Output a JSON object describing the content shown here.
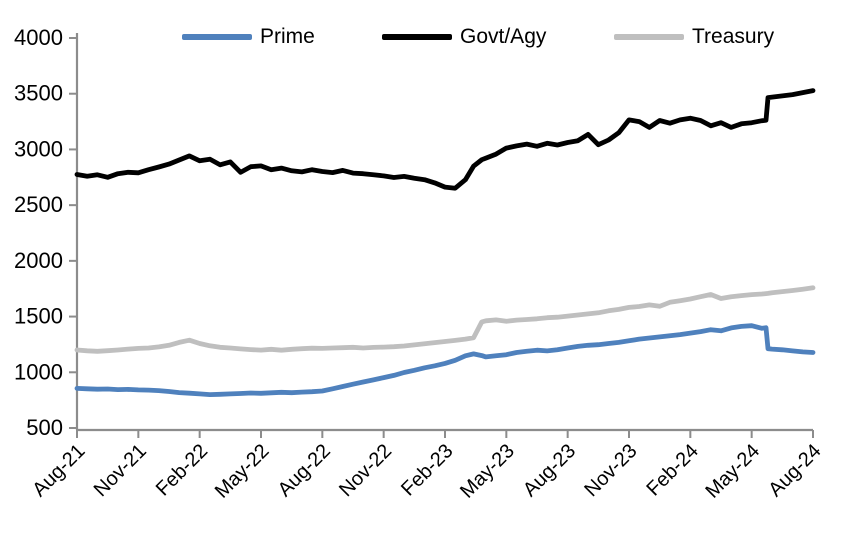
{
  "chart_data": {
    "type": "line",
    "title": "",
    "xlabel": "",
    "ylabel": "",
    "grid": false,
    "legend_position": "top",
    "ylim": [
      500,
      4000
    ],
    "y_ticks": [
      500,
      1000,
      1500,
      2000,
      2500,
      3000,
      3500,
      4000
    ],
    "x_unit": "months after Aug-2021",
    "x_tick_months": [
      0,
      3,
      6,
      9,
      12,
      15,
      18,
      21,
      24,
      27,
      30,
      33,
      36
    ],
    "x_tick_labels": [
      "Aug-21",
      "Nov-21",
      "Feb-22",
      "May-22",
      "Aug-22",
      "Nov-22",
      "Feb-23",
      "May-23",
      "Aug-23",
      "Nov-23",
      "Feb-24",
      "May-24",
      "Aug-24"
    ],
    "x": [
      0,
      0.5,
      1,
      1.5,
      2,
      2.5,
      3,
      3.5,
      4,
      4.5,
      5,
      5.5,
      6,
      6.5,
      7,
      7.5,
      8,
      8.5,
      9,
      9.5,
      10,
      10.5,
      11,
      11.5,
      12,
      12.5,
      13,
      13.5,
      14,
      14.5,
      15,
      15.5,
      16,
      16.5,
      17,
      17.5,
      18,
      18.5,
      19,
      19.4,
      19.8,
      20,
      20.5,
      21,
      21.5,
      22,
      22.5,
      23,
      23.5,
      24,
      24.5,
      25,
      25.5,
      26,
      26.5,
      27,
      27.5,
      28,
      28.5,
      29,
      29.5,
      30,
      30.5,
      31,
      31.5,
      32,
      32.5,
      33,
      33.5,
      33.7,
      33.8,
      34,
      34.5,
      35,
      35.5,
      36
    ],
    "series": [
      {
        "name": "Prime",
        "color": "#4f81bd",
        "values": [
          855,
          852,
          848,
          850,
          845,
          846,
          842,
          840,
          836,
          828,
          818,
          812,
          806,
          800,
          802,
          806,
          810,
          814,
          811,
          816,
          820,
          817,
          822,
          826,
          832,
          852,
          872,
          893,
          913,
          932,
          952,
          972,
          998,
          1018,
          1040,
          1058,
          1080,
          1108,
          1148,
          1165,
          1150,
          1138,
          1148,
          1158,
          1178,
          1188,
          1198,
          1192,
          1202,
          1218,
          1232,
          1242,
          1248,
          1258,
          1268,
          1283,
          1298,
          1308,
          1318,
          1328,
          1338,
          1352,
          1365,
          1382,
          1372,
          1398,
          1412,
          1418,
          1395,
          1400,
          1212,
          1208,
          1202,
          1192,
          1183,
          1178
        ]
      },
      {
        "name": "Govt/Agy",
        "color": "#000000",
        "values": [
          2775,
          2760,
          2772,
          2750,
          2782,
          2795,
          2790,
          2818,
          2842,
          2868,
          2905,
          2942,
          2898,
          2912,
          2862,
          2888,
          2795,
          2845,
          2852,
          2818,
          2832,
          2808,
          2798,
          2818,
          2802,
          2792,
          2812,
          2788,
          2782,
          2772,
          2762,
          2748,
          2758,
          2742,
          2728,
          2700,
          2662,
          2652,
          2728,
          2850,
          2908,
          2922,
          2958,
          3012,
          3032,
          3048,
          3028,
          3055,
          3040,
          3062,
          3078,
          3135,
          3042,
          3085,
          3150,
          3265,
          3250,
          3198,
          3260,
          3235,
          3265,
          3280,
          3260,
          3212,
          3240,
          3198,
          3230,
          3240,
          3258,
          3262,
          3465,
          3470,
          3480,
          3492,
          3510,
          3528
        ]
      },
      {
        "name": "Treasury",
        "color": "#bfbfbf",
        "values": [
          1200,
          1193,
          1188,
          1194,
          1200,
          1208,
          1214,
          1218,
          1228,
          1242,
          1268,
          1288,
          1258,
          1238,
          1224,
          1218,
          1210,
          1204,
          1199,
          1206,
          1198,
          1206,
          1212,
          1216,
          1214,
          1218,
          1221,
          1224,
          1218,
          1223,
          1226,
          1230,
          1236,
          1246,
          1256,
          1266,
          1276,
          1286,
          1298,
          1310,
          1452,
          1462,
          1470,
          1458,
          1468,
          1474,
          1480,
          1490,
          1494,
          1504,
          1514,
          1524,
          1534,
          1552,
          1564,
          1582,
          1590,
          1605,
          1592,
          1628,
          1642,
          1658,
          1678,
          1698,
          1662,
          1678,
          1688,
          1697,
          1703,
          1706,
          1708,
          1714,
          1724,
          1734,
          1746,
          1758
        ]
      }
    ],
    "axis_color": "#8c8c8c",
    "tick_label_color": "#000000"
  }
}
